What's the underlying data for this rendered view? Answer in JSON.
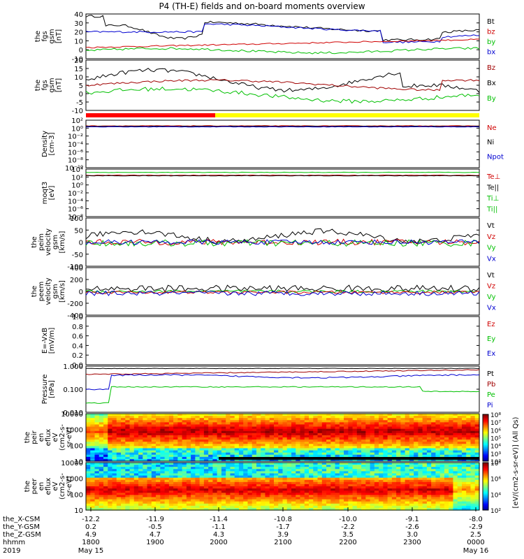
{
  "title": "P4 (TH-E) fields and on-board moments overview",
  "chart_data": {
    "type": "line",
    "panels": [
      {
        "id": "fgs_gsm",
        "ylabel": [
          "the",
          "fgs",
          "gsm",
          "[nT]"
        ],
        "ylim": [
          -10,
          42
        ],
        "ticks": [
          "40",
          "30",
          "20",
          "10",
          "0",
          "-10"
        ],
        "legend": [
          {
            "label": "Bt",
            "color": "#000000"
          },
          {
            "label": "bz",
            "color": "#d00000"
          },
          {
            "label": "by",
            "color": "#00c000"
          },
          {
            "label": "bx",
            "color": "#0000d0"
          }
        ]
      },
      {
        "id": "fgs_gse",
        "ylabel": [
          "the",
          "fgs",
          "gsm",
          "[nT]"
        ],
        "ylim": [
          -15,
          22
        ],
        "ticks": [
          "20",
          "15",
          "10",
          "5",
          "0",
          "-5",
          "-10"
        ],
        "legend": [
          {
            "label": "Bz",
            "color": "#a00000"
          },
          {
            "label": "Bx",
            "color": "#000000"
          },
          {
            "label": "By",
            "color": "#00c000"
          }
        ]
      },
      {
        "id": "density",
        "ylabel": [
          "Density",
          "[cm-3]"
        ],
        "ylim": [
          -10,
          2
        ],
        "ticks": [
          "10²",
          "10⁰",
          "10⁻²",
          "10⁻⁴",
          "10⁻⁶",
          "10⁻⁸",
          "10⁻¹⁰"
        ],
        "legend": [
          {
            "label": "Ne",
            "color": "#d00000"
          },
          {
            "label": "Ni",
            "color": "#000000"
          },
          {
            "label": "Npot",
            "color": "#0000d0"
          }
        ]
      },
      {
        "id": "temperature",
        "ylabel": [
          "moqt3",
          "[eV]"
        ],
        "ylim": [
          -10,
          4
        ],
        "ticks": [
          "10⁴",
          "10²",
          "10⁰",
          "10⁻²",
          "10⁻⁴",
          "10⁻⁶",
          "10⁻⁸"
        ],
        "legend": [
          {
            "label": "Te⊥",
            "color": "#d00000"
          },
          {
            "label": "Te||",
            "color": "#000000"
          },
          {
            "label": "Ti⊥",
            "color": "#00c000"
          },
          {
            "label": "Ti||",
            "color": "#00c000"
          }
        ]
      },
      {
        "id": "peim_velocity",
        "ylabel": [
          "the",
          "peim",
          "velocity",
          "gsm",
          "[km/s]"
        ],
        "ylim": [
          -100,
          100
        ],
        "ticks": [
          "100",
          "50",
          "0",
          "-50",
          "-100"
        ],
        "legend": [
          {
            "label": "Vt",
            "color": "#000000"
          },
          {
            "label": "Vz",
            "color": "#d00000"
          },
          {
            "label": "Vy",
            "color": "#00c000"
          },
          {
            "label": "Vx",
            "color": "#0000d0"
          }
        ]
      },
      {
        "id": "peem_velocity",
        "ylabel": [
          "the",
          "peem",
          "velocity",
          "gsm",
          "[km/s]"
        ],
        "ylim": [
          -400,
          400
        ],
        "ticks": [
          "400",
          "200",
          "0",
          "-200",
          "-400"
        ],
        "legend": [
          {
            "label": "Vt",
            "color": "#000000"
          },
          {
            "label": "Vz",
            "color": "#d00000"
          },
          {
            "label": "Vy",
            "color": "#00c000"
          },
          {
            "label": "Vx",
            "color": "#0000d0"
          }
        ]
      },
      {
        "id": "efield",
        "ylabel": [
          "E=-VxB",
          "[mV/m]"
        ],
        "ylim": [
          0,
          1
        ],
        "ticks": [
          "1.0",
          "0.8",
          "0.6",
          "0.4",
          "0.2",
          "0.0"
        ],
        "legend": [
          {
            "label": "Ez",
            "color": "#d00000"
          },
          {
            "label": "Ey",
            "color": "#00c000"
          },
          {
            "label": "Ex",
            "color": "#0000d0"
          }
        ]
      },
      {
        "id": "pressure",
        "ylabel": [
          "Pressure",
          "[nPa]"
        ],
        "ylim": [
          -2.3,
          0
        ],
        "ticks": [
          "1.000",
          "0.100",
          "0.010"
        ],
        "legend": [
          {
            "label": "Pt",
            "color": "#000000"
          },
          {
            "label": "Pb",
            "color": "#a00000"
          },
          {
            "label": "Pe",
            "color": "#00c000"
          },
          {
            "label": "Pi",
            "color": "#0000d0"
          }
        ]
      },
      {
        "id": "peir_spec",
        "type": "heatmap",
        "ylabel": [
          "the",
          "peir",
          "en",
          "eflux",
          "eV",
          "(cm2-s-",
          "sr-eV)"
        ],
        "ticks": [
          "10000",
          "1000",
          "100",
          "10"
        ]
      },
      {
        "id": "peer_spec",
        "type": "heatmap",
        "ylabel": [
          "the",
          "peer",
          "en",
          "eflux",
          "eV",
          "(cm2-s-",
          "sr-eV)"
        ],
        "ticks": [
          "10000",
          "1000",
          "100",
          "10"
        ]
      }
    ],
    "colorbar": {
      "label": "[eV/(cm2-s-sr-eV)] (All Qs)",
      "upper_ticks": [
        "10⁸",
        "10⁷",
        "10⁶",
        "10⁵",
        "10⁴",
        "10³",
        "10²"
      ],
      "lower_ticks": [
        "10⁸",
        "10⁶",
        "10⁴",
        "10²"
      ]
    },
    "xaxis": {
      "rows": [
        {
          "label": "the_X-CSM",
          "values": [
            "-12.2",
            "-11.9",
            "-11.4",
            "-10.8",
            "-10.0",
            "-9.1",
            "-8.0"
          ]
        },
        {
          "label": "the_Y-GSM",
          "values": [
            "0.2",
            "-0.5",
            "-1.1",
            "-1.7",
            "-2.2",
            "-2.6",
            "-2.9"
          ]
        },
        {
          "label": "the_Z-GSM",
          "values": [
            "4.9",
            "4.7",
            "4.3",
            "3.9",
            "3.5",
            "3.0",
            "2.5"
          ]
        },
        {
          "label": "hhmm",
          "values": [
            "1800",
            "1900",
            "2000",
            "2100",
            "2200",
            "2300",
            "0000"
          ]
        }
      ],
      "year": "2019",
      "start_date": "May 15",
      "end_date": "May 16"
    }
  }
}
